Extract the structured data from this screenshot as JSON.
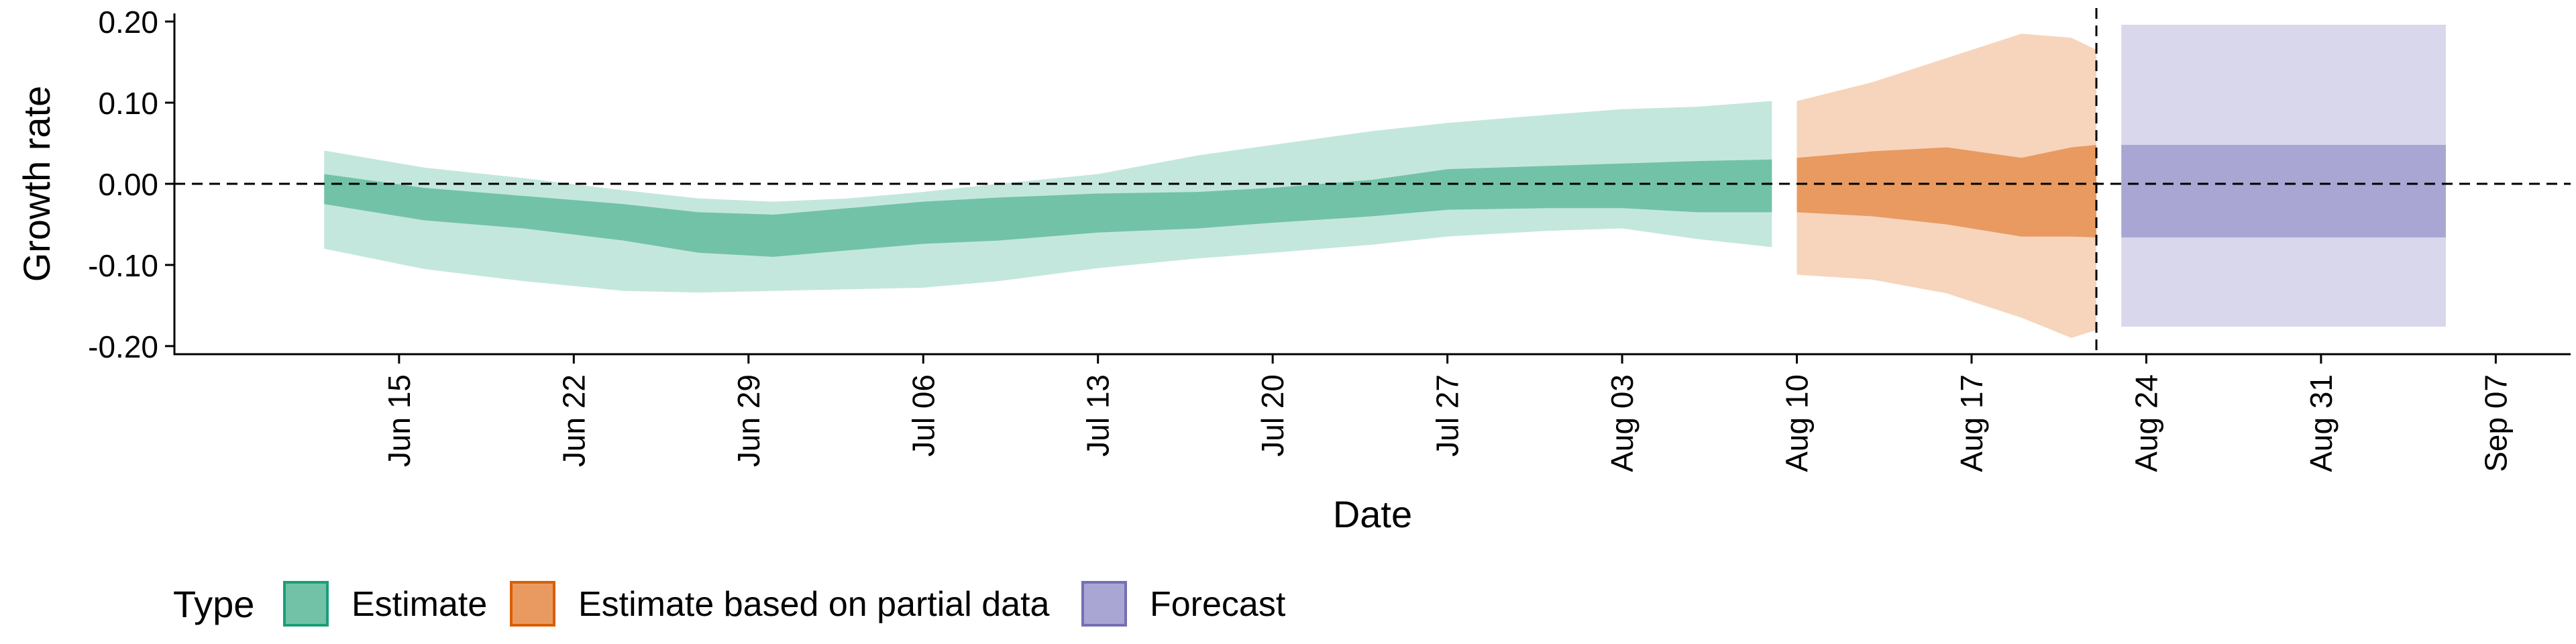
{
  "chart_data": {
    "type": "area",
    "xlabel": "Date",
    "ylabel": "Growth rate",
    "ylim": [
      -0.21,
      0.21
    ],
    "y_ticks": [
      {
        "value": 0.2,
        "label": "0.20"
      },
      {
        "value": 0.1,
        "label": "0.10"
      },
      {
        "value": 0.0,
        "label": "0.00"
      },
      {
        "value": -0.1,
        "label": "-0.10"
      },
      {
        "value": -0.2,
        "label": "-0.20"
      }
    ],
    "x_range": [
      "2020-06-06",
      "2020-09-10"
    ],
    "x_ticks": [
      {
        "date": "2020-06-15",
        "label": "Jun 15"
      },
      {
        "date": "2020-06-22",
        "label": "Jun 22"
      },
      {
        "date": "2020-06-29",
        "label": "Jun 29"
      },
      {
        "date": "2020-07-06",
        "label": "Jul 06"
      },
      {
        "date": "2020-07-13",
        "label": "Jul 13"
      },
      {
        "date": "2020-07-20",
        "label": "Jul 20"
      },
      {
        "date": "2020-07-27",
        "label": "Jul 27"
      },
      {
        "date": "2020-08-03",
        "label": "Aug 03"
      },
      {
        "date": "2020-08-10",
        "label": "Aug 10"
      },
      {
        "date": "2020-08-17",
        "label": "Aug 17"
      },
      {
        "date": "2020-08-24",
        "label": "Aug 24"
      },
      {
        "date": "2020-08-31",
        "label": "Aug 31"
      },
      {
        "date": "2020-09-07",
        "label": "Sep 07"
      }
    ],
    "reference_lines": {
      "horizontal_y": 0.0,
      "vertical_date": "2020-08-22"
    },
    "legend": {
      "title": "Type",
      "position": "bottom-left"
    },
    "grid": false,
    "series": [
      {
        "name": "Estimate",
        "color": "#1b9e77",
        "outer_fill": "#c4e7dd",
        "inner_fill": "#72c2a8",
        "points": [
          {
            "date": "2020-06-12",
            "lower90": -0.08,
            "upper90": 0.041,
            "lower50": -0.025,
            "upper50": 0.012
          },
          {
            "date": "2020-06-16",
            "lower90": -0.105,
            "upper90": 0.02,
            "lower50": -0.045,
            "upper50": -0.005
          },
          {
            "date": "2020-06-20",
            "lower90": -0.12,
            "upper90": 0.007,
            "lower50": -0.055,
            "upper50": -0.015
          },
          {
            "date": "2020-06-24",
            "lower90": -0.132,
            "upper90": -0.008,
            "lower50": -0.07,
            "upper50": -0.025
          },
          {
            "date": "2020-06-27",
            "lower90": -0.134,
            "upper90": -0.018,
            "lower50": -0.085,
            "upper50": -0.035
          },
          {
            "date": "2020-06-30",
            "lower90": -0.132,
            "upper90": -0.022,
            "lower50": -0.09,
            "upper50": -0.038
          },
          {
            "date": "2020-07-03",
            "lower90": -0.13,
            "upper90": -0.018,
            "lower50": -0.082,
            "upper50": -0.03
          },
          {
            "date": "2020-07-06",
            "lower90": -0.128,
            "upper90": -0.01,
            "lower50": -0.074,
            "upper50": -0.022
          },
          {
            "date": "2020-07-09",
            "lower90": -0.12,
            "upper90": 0.0,
            "lower50": -0.07,
            "upper50": -0.017
          },
          {
            "date": "2020-07-13",
            "lower90": -0.104,
            "upper90": 0.012,
            "lower50": -0.06,
            "upper50": -0.012
          },
          {
            "date": "2020-07-17",
            "lower90": -0.092,
            "upper90": 0.035,
            "lower50": -0.055,
            "upper50": -0.01
          },
          {
            "date": "2020-07-20",
            "lower90": -0.085,
            "upper90": 0.048,
            "lower50": -0.048,
            "upper50": -0.005
          },
          {
            "date": "2020-07-24",
            "lower90": -0.075,
            "upper90": 0.065,
            "lower50": -0.04,
            "upper50": 0.005
          },
          {
            "date": "2020-07-27",
            "lower90": -0.065,
            "upper90": 0.075,
            "lower50": -0.032,
            "upper50": 0.018
          },
          {
            "date": "2020-07-31",
            "lower90": -0.058,
            "upper90": 0.085,
            "lower50": -0.03,
            "upper50": 0.022
          },
          {
            "date": "2020-08-03",
            "lower90": -0.055,
            "upper90": 0.092,
            "lower50": -0.03,
            "upper50": 0.025
          },
          {
            "date": "2020-08-06",
            "lower90": -0.068,
            "upper90": 0.095,
            "lower50": -0.035,
            "upper50": 0.028
          },
          {
            "date": "2020-08-09",
            "lower90": -0.078,
            "upper90": 0.102,
            "lower50": -0.035,
            "upper50": 0.03
          }
        ]
      },
      {
        "name": "Estimate based on partial data",
        "color": "#d95f02",
        "outer_fill": "#f6d5bc",
        "inner_fill": "#e99a60",
        "points": [
          {
            "date": "2020-08-10",
            "lower90": -0.112,
            "upper90": 0.102,
            "lower50": -0.035,
            "upper50": 0.032
          },
          {
            "date": "2020-08-13",
            "lower90": -0.118,
            "upper90": 0.125,
            "lower50": -0.04,
            "upper50": 0.04
          },
          {
            "date": "2020-08-16",
            "lower90": -0.135,
            "upper90": 0.155,
            "lower50": -0.05,
            "upper50": 0.045
          },
          {
            "date": "2020-08-19",
            "lower90": -0.165,
            "upper90": 0.185,
            "lower50": -0.065,
            "upper50": 0.032
          },
          {
            "date": "2020-08-21",
            "lower90": -0.19,
            "upper90": 0.18,
            "lower50": -0.065,
            "upper50": 0.045
          },
          {
            "date": "2020-08-22",
            "lower90": -0.18,
            "upper90": 0.165,
            "lower50": -0.066,
            "upper50": 0.048
          }
        ]
      },
      {
        "name": "Forecast",
        "color": "#7570b3",
        "outer_fill": "#d8d7ec",
        "inner_fill": "#a9a6d3",
        "points": [
          {
            "date": "2020-08-23",
            "lower90": -0.176,
            "upper90": 0.196,
            "lower50": -0.066,
            "upper50": 0.048
          },
          {
            "date": "2020-09-05",
            "lower90": -0.176,
            "upper90": 0.196,
            "lower50": -0.066,
            "upper50": 0.048
          }
        ]
      }
    ]
  }
}
